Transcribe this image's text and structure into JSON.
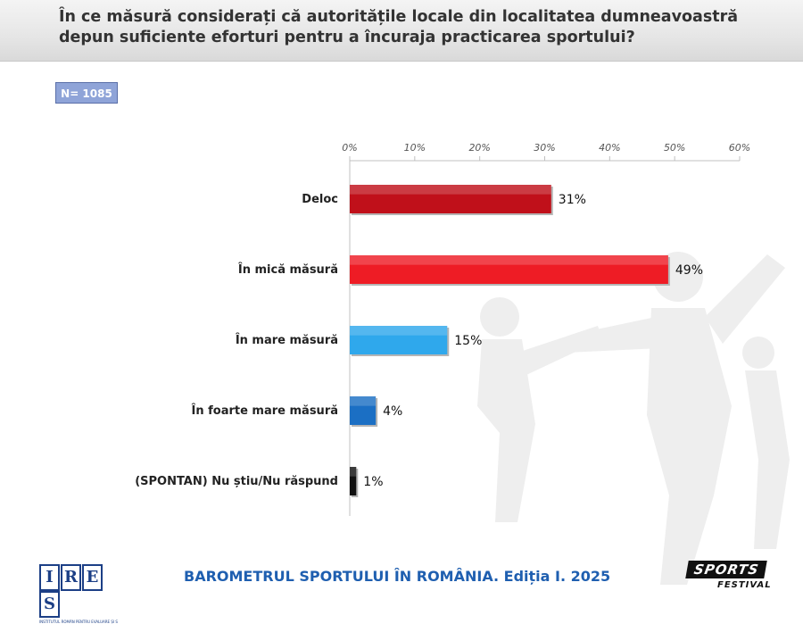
{
  "header": {
    "title": "În ce măsură considerați că autoritățile locale din localitatea dumneavoastră depun suficiente eforturi pentru a încuraja practicarea sportului?"
  },
  "sample": {
    "label": "N= 1085"
  },
  "chart_data": {
    "type": "bar",
    "orientation": "horizontal",
    "categories": [
      "Deloc",
      "În mică măsură",
      "În mare măsură",
      "În foarte mare măsură",
      "(SPONTAN) Nu știu/Nu răspund"
    ],
    "values": [
      31,
      49,
      15,
      4,
      1
    ],
    "value_labels": [
      "31%",
      "49%",
      "15%",
      "4%",
      "1%"
    ],
    "colors": [
      "#c0101a",
      "#ee1c25",
      "#2fa8ec",
      "#1b6fc4",
      "#111111"
    ],
    "xlim": [
      0,
      60
    ],
    "x_ticks": [
      "0%",
      "10%",
      "20%",
      "30%",
      "40%",
      "50%",
      "60%"
    ],
    "x_axis_position": "top",
    "grid": false,
    "legend": "none"
  },
  "footer": {
    "title": "BAROMETRUL SPORTULUI ÎN ROMÂNIA. Ediția I. 2025",
    "ires_logo_letters": [
      "I",
      "R",
      "E",
      "S"
    ],
    "ires_logo_subtitle": "INSTITUTUL ROMÂN PENTRU EVALUARE ȘI STRATEGIE",
    "sports_logo_main": "SPORTS",
    "sports_logo_sub": "FESTIVAL"
  }
}
